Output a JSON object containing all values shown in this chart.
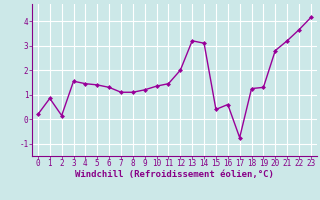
{
  "x": [
    0,
    1,
    2,
    3,
    4,
    5,
    6,
    7,
    8,
    9,
    10,
    11,
    12,
    13,
    14,
    15,
    16,
    17,
    18,
    19,
    20,
    21,
    22,
    23
  ],
  "y": [
    0.2,
    0.85,
    0.15,
    1.55,
    1.45,
    1.4,
    1.3,
    1.1,
    1.1,
    1.2,
    1.35,
    1.45,
    2.0,
    3.2,
    3.1,
    0.4,
    0.6,
    -0.75,
    1.25,
    1.3,
    2.8,
    3.2,
    3.65,
    4.15
  ],
  "line_color": "#990099",
  "marker": "D",
  "marker_size": 2,
  "linewidth": 1.0,
  "xlabel": "Windchill (Refroidissement éolien,°C)",
  "ylabel": "",
  "title": "",
  "xlim": [
    -0.5,
    23.5
  ],
  "ylim": [
    -1.5,
    4.7
  ],
  "yticks": [
    -1,
    0,
    1,
    2,
    3,
    4
  ],
  "xticks": [
    0,
    1,
    2,
    3,
    4,
    5,
    6,
    7,
    8,
    9,
    10,
    11,
    12,
    13,
    14,
    15,
    16,
    17,
    18,
    19,
    20,
    21,
    22,
    23
  ],
  "background_color": "#cce8e8",
  "grid_color": "#ffffff",
  "xlabel_fontsize": 6.5,
  "tick_fontsize": 5.5,
  "xlabel_color": "#880088",
  "tick_color": "#880088",
  "spine_color": "#880088"
}
